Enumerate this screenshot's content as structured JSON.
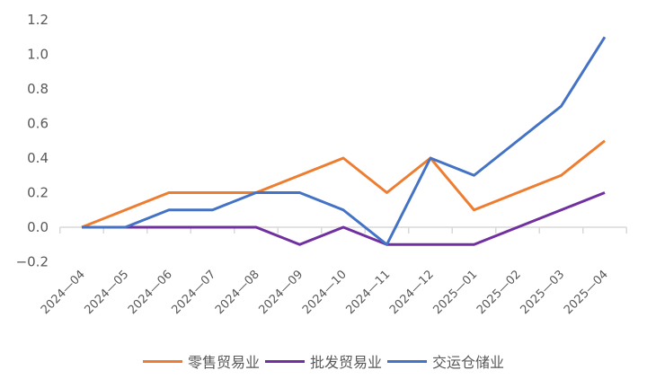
{
  "chart_data": {
    "type": "line",
    "title": "",
    "xlabel": "",
    "ylabel": "",
    "ylim": [
      -0.2,
      1.2
    ],
    "yticks": [
      -0.2,
      0.0,
      0.2,
      0.4,
      0.6,
      0.8,
      1.0,
      1.2
    ],
    "ytick_labels": [
      "−0.2",
      "0.0",
      "0.2",
      "0.4",
      "0.6",
      "0.8",
      "1.0",
      "1.2"
    ],
    "grid": false,
    "legend_position": "bottom",
    "categories": [
      "2024-04",
      "2024-05",
      "2024-06",
      "2024-07",
      "2024-08",
      "2024-09",
      "2024-10",
      "2024-11",
      "2024-12",
      "2025-01",
      "2025-02",
      "2025-03",
      "2025-04"
    ],
    "category_labels": [
      "2024—04",
      "2024—05",
      "2024—06",
      "2024—07",
      "2024—08",
      "2024—09",
      "2024—10",
      "2024—11",
      "2024—12",
      "2025—01",
      "2025—02",
      "2025—03",
      "2025—04"
    ],
    "series": [
      {
        "name": "零售贸易业",
        "color": "#ED7D31",
        "values": [
          0.0,
          0.1,
          0.2,
          0.2,
          0.2,
          0.3,
          0.4,
          0.2,
          0.4,
          0.1,
          0.2,
          0.3,
          0.5
        ]
      },
      {
        "name": "批发贸易业",
        "color": "#7030A0",
        "values": [
          0.0,
          0.0,
          0.0,
          0.0,
          0.0,
          -0.1,
          0.0,
          -0.1,
          -0.1,
          -0.1,
          0.0,
          0.1,
          0.2
        ]
      },
      {
        "name": "交运仓储业",
        "color": "#4472C4",
        "values": [
          0.0,
          0.0,
          0.1,
          0.1,
          0.2,
          0.2,
          0.1,
          -0.1,
          0.4,
          0.3,
          0.5,
          0.7,
          1.1
        ]
      }
    ]
  },
  "legend": {
    "items": [
      {
        "label": "零售贸易业",
        "color": "#ED7D31"
      },
      {
        "label": "批发贸易业",
        "color": "#7030A0"
      },
      {
        "label": "交运仓储业",
        "color": "#4472C4"
      }
    ]
  }
}
